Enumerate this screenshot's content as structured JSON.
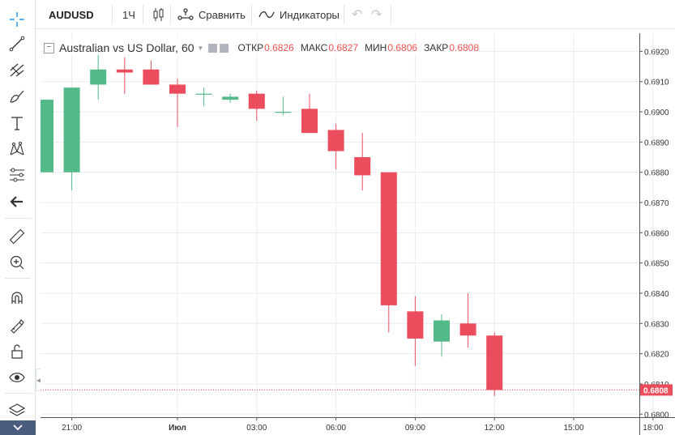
{
  "toolbar": {
    "symbol": "AUDUSD",
    "interval": "1Ч",
    "chart_style_icon": "candles-icon",
    "compare_label": "Сравнить",
    "indicators_label": "Индикаторы",
    "undo_icon": "undo-icon",
    "redo_icon": "redo-icon"
  },
  "left_tools": [
    "crosshair-icon",
    "trend-line-icon",
    "fork-icon",
    "brush-icon",
    "text-icon",
    "pattern-icon",
    "prediction-icon",
    "back-arrow-icon",
    "ruler-icon",
    "zoom-in-icon",
    "magnet-icon",
    "lock-drawing-icon",
    "unlock-icon",
    "eye-icon",
    "layers-icon"
  ],
  "legend": {
    "title": "Australian vs US Dollar, 60",
    "open_label": "ОТКР",
    "open_value": "0.6826",
    "high_label": "МАКС",
    "high_value": "0.6827",
    "low_label": "МИН",
    "low_value": "0.6806",
    "close_label": "ЗАКР",
    "close_value": "0.6808"
  },
  "colors": {
    "up": "#53b987",
    "down": "#eb4d5c",
    "grid": "#e9ecf2",
    "last_price_bg": "#eb4d5c",
    "toolbar_accent": "#4a5d7e"
  },
  "chart_data": {
    "type": "candlestick",
    "time_labels": [
      "21:00",
      "Июл",
      "03:00",
      "06:00",
      "09:00",
      "12:00",
      "15:00",
      "18:00"
    ],
    "price_ticks": [
      "0.6920",
      "0.6910",
      "0.6900",
      "0.6890",
      "0.6880",
      "0.6870",
      "0.6860",
      "0.6850",
      "0.6840",
      "0.6830",
      "0.6820",
      "0.6810",
      "0.6800"
    ],
    "ylim": [
      0.6799,
      0.6926
    ],
    "last_price": "0.6808",
    "candles": [
      {
        "o": 0.688,
        "h": 0.6904,
        "l": 0.688,
        "c": 0.6904
      },
      {
        "o": 0.688,
        "h": 0.6908,
        "l": 0.6874,
        "c": 0.6908
      },
      {
        "o": 0.6909,
        "h": 0.6922,
        "l": 0.6904,
        "c": 0.6914
      },
      {
        "o": 0.6914,
        "h": 0.6918,
        "l": 0.6906,
        "c": 0.6913
      },
      {
        "o": 0.6914,
        "h": 0.6917,
        "l": 0.6909,
        "c": 0.6909
      },
      {
        "o": 0.6909,
        "h": 0.6911,
        "l": 0.6895,
        "c": 0.6906
      },
      {
        "o": 0.6906,
        "h": 0.6908,
        "l": 0.6902,
        "c": 0.6906
      },
      {
        "o": 0.6904,
        "h": 0.6906,
        "l": 0.6903,
        "c": 0.6905
      },
      {
        "o": 0.6906,
        "h": 0.6907,
        "l": 0.6897,
        "c": 0.6901
      },
      {
        "o": 0.69,
        "h": 0.6905,
        "l": 0.6899,
        "c": 0.69
      },
      {
        "o": 0.6901,
        "h": 0.6906,
        "l": 0.6893,
        "c": 0.6893
      },
      {
        "o": 0.6894,
        "h": 0.6896,
        "l": 0.6881,
        "c": 0.6887
      },
      {
        "o": 0.6885,
        "h": 0.6893,
        "l": 0.6874,
        "c": 0.6879
      },
      {
        "o": 0.688,
        "h": 0.688,
        "l": 0.6827,
        "c": 0.6836
      },
      {
        "o": 0.6834,
        "h": 0.6839,
        "l": 0.6816,
        "c": 0.6825
      },
      {
        "o": 0.6824,
        "h": 0.6833,
        "l": 0.6819,
        "c": 0.6831
      },
      {
        "o": 0.683,
        "h": 0.684,
        "l": 0.6822,
        "c": 0.6826
      },
      {
        "o": 0.6826,
        "h": 0.6827,
        "l": 0.6806,
        "c": 0.6808
      }
    ],
    "x_labels_candle_index": [
      1,
      5,
      8,
      11,
      14,
      17,
      20,
      23
    ]
  }
}
